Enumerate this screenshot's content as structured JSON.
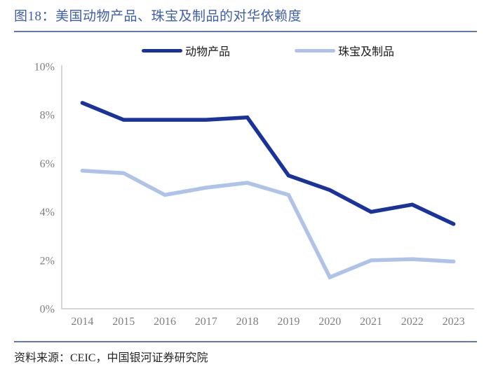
{
  "page": {
    "title": "图18：美国动物产品、珠宝及制品的对华依赖度",
    "source": "资料来源：CEIC，中国银河证券研究院"
  },
  "colors": {
    "title_blue": "#3F5EAA",
    "rule_blue": "#6079AF",
    "series_dark": "#1A339C",
    "series_light": "#AFC3E8",
    "axis_line_gray": "#C9C9C9",
    "tick_label_gray": "#7F7F7F",
    "text_dark": "#262626"
  },
  "chart_data": {
    "type": "line",
    "title": "美国动物产品、珠宝及制品的对华依赖度",
    "categories": [
      "2014",
      "2015",
      "2016",
      "2017",
      "2018",
      "2019",
      "2020",
      "2021",
      "2022",
      "2023"
    ],
    "series": [
      {
        "name": "动物产品",
        "key": "animal-products",
        "color_key": "series_dark",
        "values": [
          8.5,
          7.8,
          7.8,
          7.8,
          7.9,
          5.5,
          4.9,
          4.0,
          4.3,
          3.5
        ]
      },
      {
        "name": "珠宝及制品",
        "key": "jewelry-and-products",
        "color_key": "series_light",
        "values": [
          5.7,
          5.6,
          4.7,
          5.0,
          5.2,
          4.7,
          1.3,
          2.0,
          2.05,
          1.95
        ]
      }
    ],
    "ylabel": "",
    "xlabel": "",
    "ylim": [
      0,
      10
    ],
    "ytick_step": 2,
    "ytick_suffix": "%",
    "yticks": [
      "0%",
      "2%",
      "4%",
      "6%",
      "8%",
      "10%"
    ],
    "legend_position": "top",
    "grid": false
  }
}
